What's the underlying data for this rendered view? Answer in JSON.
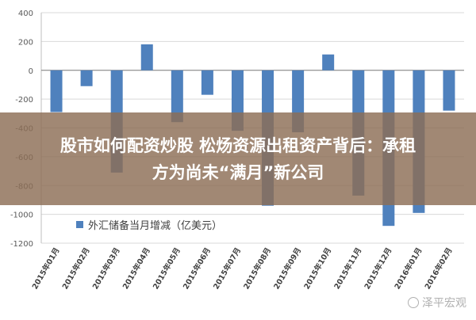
{
  "chart_data": {
    "type": "bar",
    "categories": [
      "2015年01月",
      "2015年02月",
      "2015年03月",
      "2015年04月",
      "2015年05月",
      "2015年06月",
      "2015年07月",
      "2015年08月",
      "2015年09月",
      "2015年10月",
      "2015年11月",
      "2015年12月",
      "2016年01月",
      "2016年02月"
    ],
    "series": [
      {
        "name": "外汇储备当月增减（亿美元）",
        "values": [
          -290,
          -110,
          -710,
          180,
          -360,
          -170,
          -420,
          -940,
          -430,
          110,
          -870,
          -1080,
          -990,
          -280
        ]
      }
    ],
    "ylim": [
      -1200,
      400
    ],
    "yticks": [
      400,
      200,
      0,
      -200,
      -400,
      -600,
      -800,
      -1000,
      -1200
    ],
    "grid": true,
    "legend_position": "bottom-left",
    "bar_color": "#4f81bd"
  },
  "overlay": {
    "title_line1": "股市如何配资炒股 松炀资源出租资产背后：承租",
    "title_line2": "方为尚未“满月”新公司"
  },
  "watermark": {
    "text": "泽平宏观"
  }
}
